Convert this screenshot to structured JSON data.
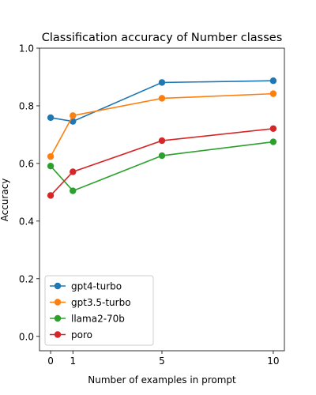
{
  "chart_data": {
    "type": "line",
    "title": "Classification accuracy of Number classes",
    "xlabel": "Number of examples in prompt",
    "ylabel": "Accuracy",
    "x": [
      0,
      1,
      5,
      10
    ],
    "xticks": [
      0,
      1,
      5,
      10
    ],
    "xtick_labels": [
      "0",
      "1",
      "5",
      "10"
    ],
    "yticks": [
      0.0,
      0.2,
      0.4,
      0.6,
      0.8,
      1.0
    ],
    "ytick_labels": [
      "0.0",
      "0.2",
      "0.4",
      "0.6",
      "0.8",
      "1.0"
    ],
    "xlim": [
      -0.5,
      10.5
    ],
    "ylim": [
      -0.05,
      1.0
    ],
    "grid": false,
    "legend_position": "lower-left",
    "series": [
      {
        "name": "gpt4-turbo",
        "color": "#1f77b4",
        "values": [
          0.759,
          0.746,
          0.881,
          0.887
        ]
      },
      {
        "name": "gpt3.5-turbo",
        "color": "#ff7f0e",
        "values": [
          0.624,
          0.766,
          0.826,
          0.842
        ]
      },
      {
        "name": "llama2-70b",
        "color": "#2ca02c",
        "values": [
          0.591,
          0.505,
          0.627,
          0.675
        ]
      },
      {
        "name": "poro",
        "color": "#d62728",
        "values": [
          0.489,
          0.571,
          0.679,
          0.721
        ]
      }
    ]
  }
}
